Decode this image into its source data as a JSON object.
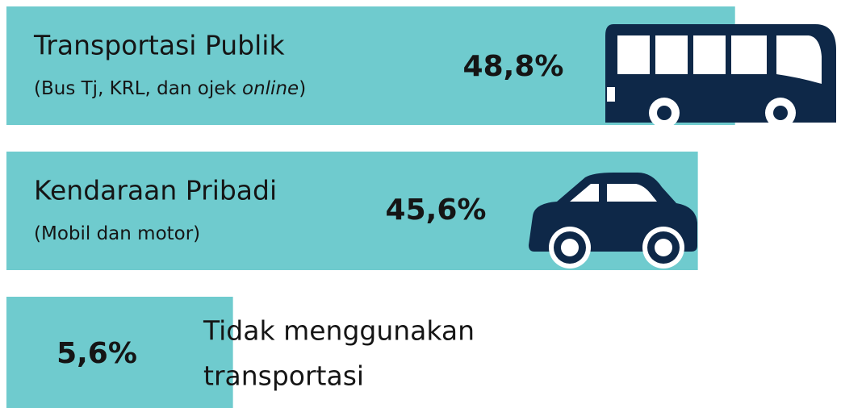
{
  "chart_data": {
    "type": "bar",
    "orientation": "horizontal",
    "color": "#6fcbce",
    "categories": [
      [
        "Transportasi Publik"
      ],
      [
        "Kendaraan Pribadi"
      ],
      [
        "Tidak menggunakan",
        "transportasi"
      ]
    ],
    "notes": [
      [
        "(Bus Tj, KRL, dan ojek ",
        "online",
        ")"
      ],
      [
        "(Mobil dan motor)"
      ],
      null
    ],
    "values": [
      48.8,
      45.6,
      5.6
    ],
    "value_labels": [
      "48,8%",
      "45,6%",
      "5,6%"
    ]
  }
}
